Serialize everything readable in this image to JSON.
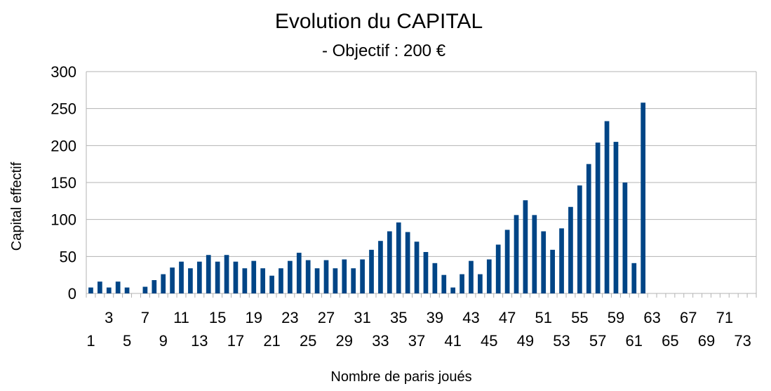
{
  "chart_data": {
    "type": "bar",
    "title": "Evolution du CAPITAL",
    "subtitle": "- Objectif : 200 €",
    "xlabel": "Nombre de paris joués",
    "ylabel": "Capital effectif",
    "ylim": [
      0,
      300
    ],
    "yticks": [
      0,
      50,
      100,
      150,
      200,
      250,
      300
    ],
    "grid": true,
    "legend": "none",
    "bar_color": "#004586",
    "categories": [
      1,
      2,
      3,
      4,
      5,
      6,
      7,
      8,
      9,
      10,
      11,
      12,
      13,
      14,
      15,
      16,
      17,
      18,
      19,
      20,
      21,
      22,
      23,
      24,
      25,
      26,
      27,
      28,
      29,
      30,
      31,
      32,
      33,
      34,
      35,
      36,
      37,
      38,
      39,
      40,
      41,
      42,
      43,
      44,
      45,
      46,
      47,
      48,
      49,
      50,
      51,
      52,
      53,
      54,
      55,
      56,
      57,
      58,
      59,
      60,
      61,
      62,
      63,
      64,
      65,
      66,
      67,
      68,
      69,
      70,
      71,
      72,
      73,
      74
    ],
    "series": [
      {
        "name": "Capital effectif",
        "values": [
          8,
          16,
          8,
          16,
          8,
          0,
          9,
          18,
          26,
          35,
          43,
          34,
          43,
          52,
          43,
          52,
          43,
          34,
          44,
          34,
          24,
          34,
          44,
          55,
          45,
          34,
          45,
          34,
          46,
          34,
          46,
          59,
          71,
          84,
          96,
          83,
          70,
          56,
          41,
          25,
          8,
          26,
          44,
          26,
          46,
          66,
          86,
          106,
          126,
          106,
          84,
          59,
          88,
          117,
          146,
          175,
          204,
          233,
          205,
          150,
          41,
          258,
          0,
          0,
          0,
          0,
          0,
          0,
          0,
          0,
          0,
          0,
          0,
          0
        ]
      }
    ]
  }
}
